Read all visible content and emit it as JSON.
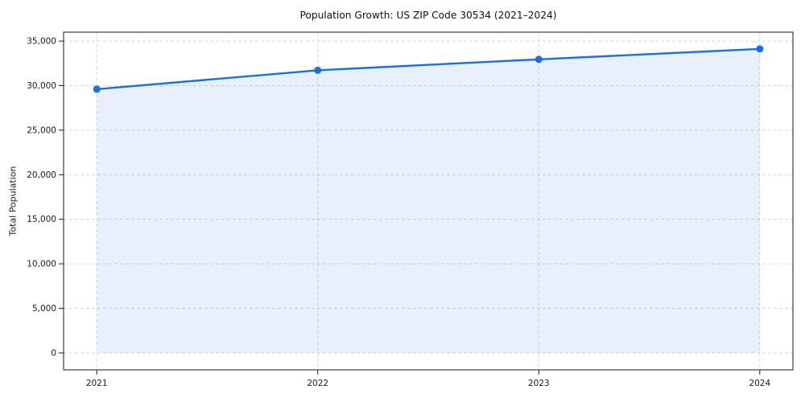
{
  "chart_data": {
    "type": "line",
    "title": "Population Growth: US ZIP Code 30534 (2021–2024)",
    "xlabel": "",
    "ylabel": "Total Population",
    "x": [
      2021,
      2022,
      2023,
      2024
    ],
    "x_tick_labels": [
      "2021",
      "2022",
      "2023",
      "2024"
    ],
    "series": [
      {
        "name": "Total Population",
        "values": [
          29600,
          31720,
          32950,
          34120
        ]
      }
    ],
    "y_ticks": [
      0,
      5000,
      10000,
      15000,
      20000,
      25000,
      30000,
      35000
    ],
    "y_tick_labels": [
      "0",
      "5,000",
      "10,000",
      "15,000",
      "20,000",
      "25,000",
      "30,000",
      "35,000"
    ],
    "ylim": [
      -1900,
      36000
    ],
    "xlim": [
      2020.85,
      2024.15
    ],
    "grid": true,
    "grid_style": "dashed",
    "legend": "none",
    "area_baseline": 0,
    "colors": {
      "line": "#1a6fe3",
      "marker": "#1a6fe3",
      "fill": "#1a6fe3",
      "fill_opacity": 0.1,
      "grid": "#d6d6d6",
      "spine": "#1a1a1a",
      "tick_text": "#1a1a1a",
      "title_text": "#111111"
    }
  }
}
